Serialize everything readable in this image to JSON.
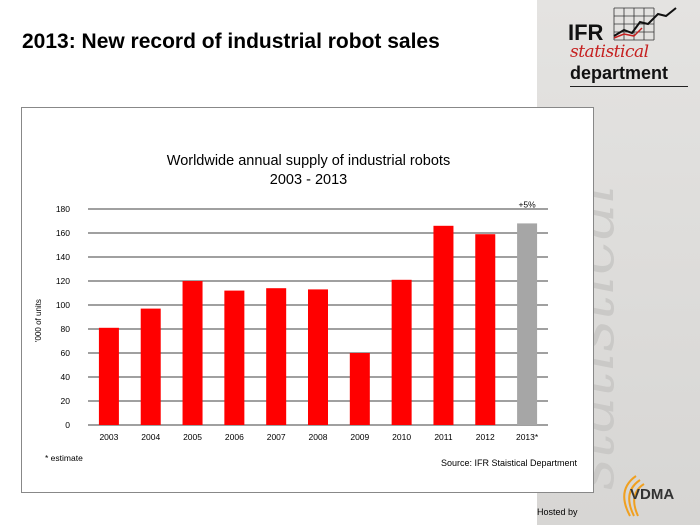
{
  "slide": {
    "title": "2013: New record of industrial robot sales",
    "hosted_by": "Hosted by"
  },
  "logos": {
    "ifr_word": "IFR",
    "ifr_statistical": "statistical",
    "ifr_department": "department",
    "watermark": "statistical",
    "vdma": "VDMA"
  },
  "colors": {
    "bar": "#ff0000",
    "estimate_bar": "#a6a6a6",
    "grid": "#000000"
  },
  "chart_data": {
    "type": "bar",
    "title": "Worldwide annual supply of industrial robots",
    "subtitle": "2003 - 2013",
    "ylabel": "'000 of units",
    "xlabel": "",
    "categories": [
      "2003",
      "2004",
      "2005",
      "2006",
      "2007",
      "2008",
      "2009",
      "2010",
      "2011",
      "2012",
      "2013*"
    ],
    "values": [
      81,
      97,
      120,
      112,
      114,
      113,
      60,
      121,
      166,
      159,
      168
    ],
    "estimate_index": 10,
    "ylim": [
      0,
      180
    ],
    "yticks": [
      0,
      20,
      40,
      60,
      80,
      100,
      120,
      140,
      160,
      180
    ],
    "annotation": "+5%",
    "footnote": "* estimate",
    "source": "Source: IFR Staistical Department",
    "grid": true,
    "legend": "none"
  }
}
